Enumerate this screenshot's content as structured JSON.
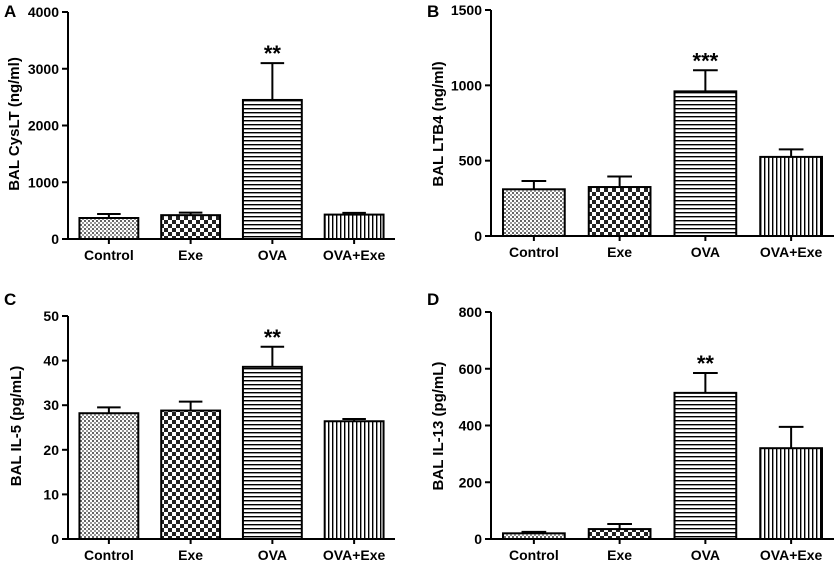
{
  "chart_data": [
    {
      "type": "bar",
      "panel": "A",
      "categories": [
        "Control",
        "Exe",
        "OVA",
        "OVA+Exe"
      ],
      "values": [
        370,
        420,
        2450,
        430
      ],
      "errors": [
        70,
        45,
        650,
        30
      ],
      "patterns": [
        "dots",
        "checker",
        "hlines",
        "vlines"
      ],
      "significance": [
        "",
        "",
        "**",
        ""
      ],
      "ylabel": "BAL CysLT (ng/ml)",
      "ylim": [
        0,
        4000
      ],
      "yticks": [
        0,
        1000,
        2000,
        3000,
        4000
      ]
    },
    {
      "type": "bar",
      "panel": "B",
      "categories": [
        "Control",
        "Exe",
        "OVA",
        "OVA+Exe"
      ],
      "values": [
        310,
        325,
        960,
        525
      ],
      "errors": [
        55,
        70,
        140,
        50
      ],
      "patterns": [
        "dots",
        "checker",
        "hlines",
        "vlines"
      ],
      "significance": [
        "",
        "",
        "***",
        ""
      ],
      "ylabel": "BAL LTB4 (ng/ml)",
      "ylim": [
        0,
        1500
      ],
      "yticks": [
        0,
        500,
        1000,
        1500
      ]
    },
    {
      "type": "bar",
      "panel": "C",
      "categories": [
        "Control",
        "Exe",
        "OVA",
        "OVA+Exe"
      ],
      "values": [
        28.2,
        28.8,
        38.6,
        26.4
      ],
      "errors": [
        1.3,
        2.0,
        4.5,
        0.5
      ],
      "patterns": [
        "dots",
        "checker",
        "hlines",
        "vlines"
      ],
      "significance": [
        "",
        "",
        "**",
        ""
      ],
      "ylabel": "BAL IL-5 (pg/mL)",
      "ylim": [
        0,
        50
      ],
      "yticks": [
        0,
        10,
        20,
        30,
        40,
        50
      ]
    },
    {
      "type": "bar",
      "panel": "D",
      "categories": [
        "Control",
        "Exe",
        "OVA",
        "OVA+Exe"
      ],
      "values": [
        20,
        35,
        515,
        320
      ],
      "errors": [
        5,
        18,
        70,
        75
      ],
      "patterns": [
        "dots",
        "checker",
        "hlines",
        "vlines"
      ],
      "significance": [
        "",
        "",
        "**",
        ""
      ],
      "ylabel": "BAL IL-13 (pg/mL)",
      "ylim": [
        0,
        800
      ],
      "yticks": [
        0,
        200,
        400,
        600,
        800
      ]
    }
  ]
}
